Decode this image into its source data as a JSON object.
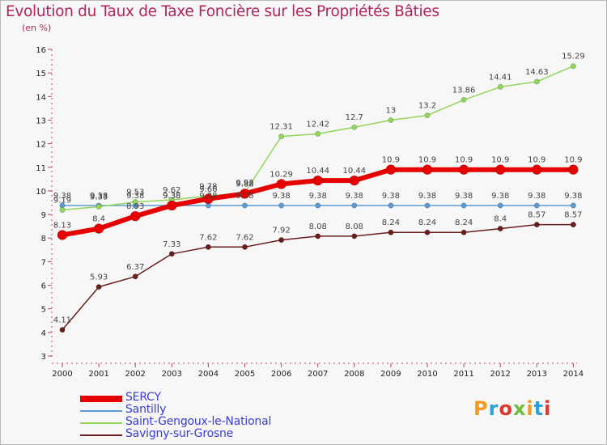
{
  "title": "Evolution du Taux de Taxe Foncière sur les Propriétés Bâties",
  "subtitle": "(en %)",
  "logo_text": "Proxiti",
  "logo_colors": [
    "#f29a20",
    "#2a9fd8",
    "#e0352b",
    "#6fbe3c"
  ],
  "chart_data": {
    "type": "line",
    "title": "Evolution du Taux de Taxe Foncière sur les Propriétés Bâties",
    "ylabel": "(en %)",
    "xlabel": "",
    "ylim": [
      3,
      16
    ],
    "yticks": [
      "3",
      "4",
      "5",
      "6",
      "7",
      "8",
      "9",
      "10",
      "11",
      "12",
      "13",
      "14",
      "15",
      "16"
    ],
    "grid": false,
    "categories": [
      "2000",
      "2001",
      "2002",
      "2003",
      "2004",
      "2005",
      "2006",
      "2007",
      "2008",
      "2009",
      "2010",
      "2011",
      "2012",
      "2013",
      "2014"
    ],
    "series": [
      {
        "name": "Savigny-sur-Grosne",
        "color": "#6b1d1d",
        "values": [
          4.11,
          5.93,
          6.37,
          7.33,
          7.62,
          7.62,
          7.92,
          8.08,
          8.08,
          8.24,
          8.24,
          8.24,
          8.4,
          8.57,
          8.57
        ],
        "labels": [
          "4.11",
          "5.93",
          "6.37",
          "7.33",
          "7.62",
          "7.62",
          "7.92",
          "8.08",
          "8.08",
          "8.24",
          "8.24",
          "8.24",
          "8.4",
          "8.57",
          "8.57"
        ]
      },
      {
        "name": "Santilly",
        "color": "#5b9bd5",
        "values": [
          9.38,
          9.38,
          9.38,
          9.38,
          9.38,
          9.38,
          9.38,
          9.38,
          9.38,
          9.38,
          9.38,
          9.38,
          9.38,
          9.38,
          9.38
        ],
        "labels": [
          "9.38",
          "9.38",
          "9.38",
          "9.38",
          "9.38",
          "9.38",
          "9.38",
          "9.38",
          "9.38",
          "9.38",
          "9.38",
          "9.38",
          "9.38",
          "9.38",
          "9.38"
        ]
      },
      {
        "name": "Saint-Gengoux-le-National",
        "color": "#8fd65a",
        "values": [
          9.19,
          9.33,
          9.53,
          9.62,
          9.78,
          9.93,
          12.31,
          12.42,
          12.7,
          13,
          13.2,
          13.86,
          14.41,
          14.63,
          15.29
        ],
        "labels": [
          "9.19",
          "9.33",
          "9.53",
          "9.62",
          "9.78",
          "9.93",
          "12.31",
          "12.42",
          "12.7",
          "13",
          "13.2",
          "13.86",
          "14.41",
          "14.63",
          "15.29"
        ]
      },
      {
        "name": "SERCY",
        "color": "#e60000",
        "values": [
          8.13,
          8.4,
          8.93,
          9.38,
          9.66,
          9.88,
          10.29,
          10.44,
          10.44,
          10.9,
          10.9,
          10.9,
          10.9,
          10.9,
          10.9
        ],
        "labels": [
          "8.13",
          "8.4",
          "8.93",
          "9.38",
          "9.66",
          "9.88",
          "10.29",
          "10.44",
          "10.44",
          "10.9",
          "10.9",
          "10.9",
          "10.9",
          "10.9",
          "10.9"
        ]
      }
    ],
    "legend": [
      "SERCY",
      "Santilly",
      "Saint-Gengoux-le-National",
      "Savigny-sur-Grosne"
    ],
    "legend_position": "bottom-left"
  }
}
